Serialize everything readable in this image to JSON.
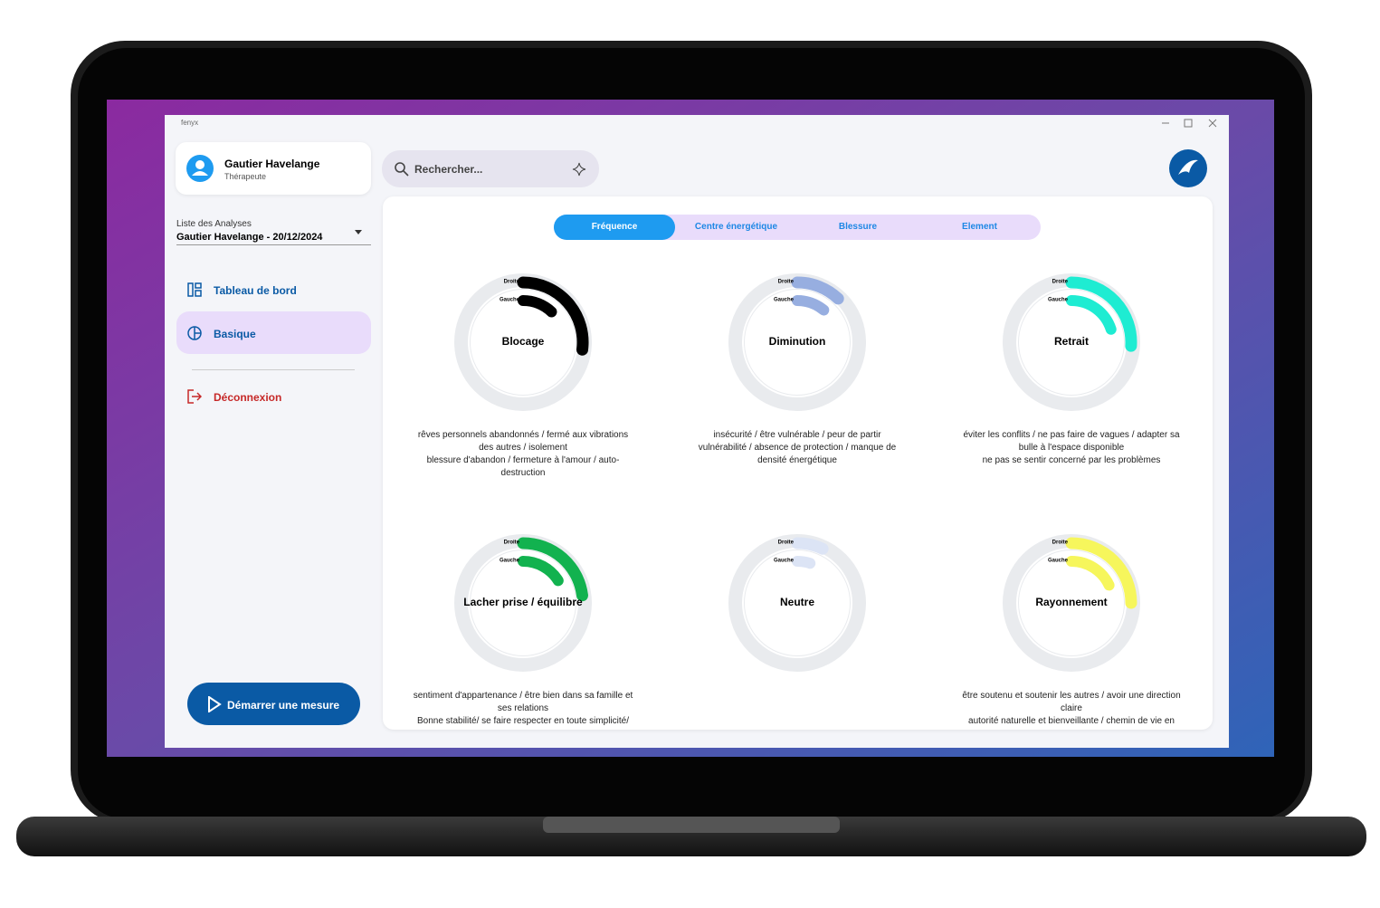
{
  "window_title": "fenyx",
  "user": {
    "name": "Gautier Havelange",
    "role": "Thérapeute"
  },
  "analysis_select": {
    "label": "Liste des Analyses",
    "value": "Gautier Havelange - 20/12/2024"
  },
  "nav": [
    "Tableau de bord",
    "Basique"
  ],
  "logout": "Déconnexion",
  "start_button": "Démarrer une mesure",
  "search_placeholder": "Rechercher...",
  "tabs": [
    "Fréquence",
    "Centre énergétique",
    "Blessure",
    "Element"
  ],
  "gauge_labels": {
    "right": "Droite",
    "left": "Gauche"
  },
  "cards": [
    {
      "title": "Blocage",
      "color": "#000000",
      "right": 27,
      "left": 12,
      "description": [
        "rêves personnels abandonnés / fermé aux vibrations des autres / isolement",
        "blessure d'abandon / fermeture à l'amour / auto-destruction"
      ]
    },
    {
      "title": "Diminution",
      "color": "#97aee0",
      "right": 12,
      "left": 11,
      "description": [
        "insécurité / être vulnérable / peur de partir",
        "vulnérabilité / absence de protection / manque de densité énergétique"
      ]
    },
    {
      "title": "Retrait",
      "color": "#1eecd2",
      "right": 26,
      "left": 20,
      "description": [
        "éviter les conflits / ne pas faire de vagues / adapter sa bulle à l'espace disponible",
        "ne pas se sentir concerné par les problèmes"
      ]
    },
    {
      "title": "Lacher prise / équilibre",
      "color": "#12b24f",
      "right": 23,
      "left": 16,
      "description": [
        "sentiment d'appartenance / être bien dans sa famille et ses relations",
        "Bonne stabilité/ se faire respecter en toute simplicité/"
      ]
    },
    {
      "title": "Neutre",
      "color": "#dce4f5",
      "right": 7,
      "left": 5,
      "description": []
    },
    {
      "title": "Rayonnement",
      "color": "#f6f65c",
      "right": 25,
      "left": 18,
      "description": [
        "être soutenu et soutenir les autres / avoir une direction claire",
        "autorité naturelle et bienveillante / chemin de vie en"
      ]
    }
  ]
}
